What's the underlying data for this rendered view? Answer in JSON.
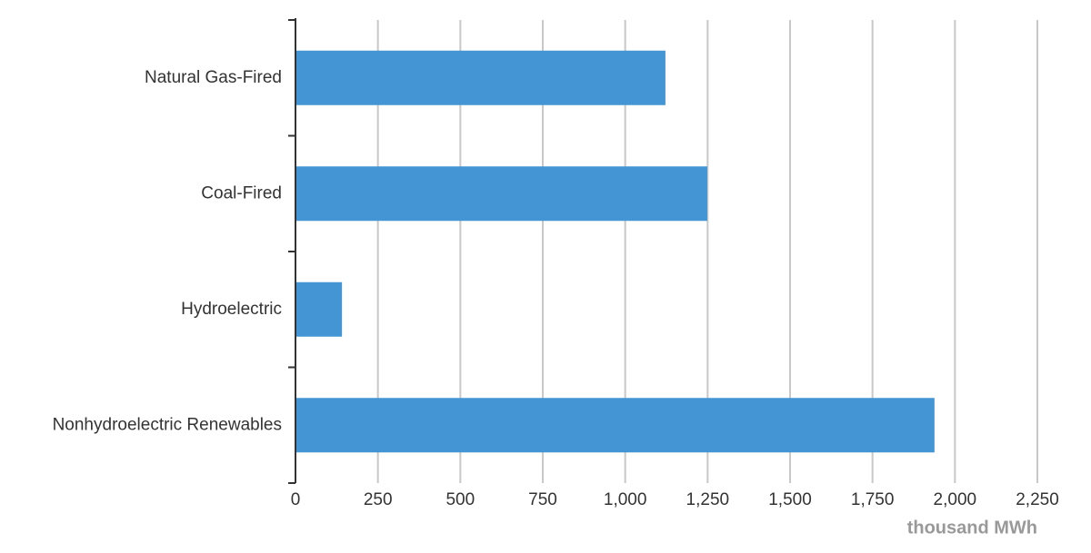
{
  "chart_data": {
    "type": "hbar",
    "categories": [
      "Natural Gas-Fired",
      "Coal-Fired",
      "Hydroelectric",
      "Nonhydroelectric Renewables"
    ],
    "values": [
      1122,
      1249,
      141,
      1938
    ],
    "color": "#4396d3",
    "x_label": "thousand MWh",
    "xlim": [
      0,
      2250
    ],
    "xticks": [
      0,
      250,
      500,
      750,
      {
        "value": 1000,
        "label": "1,000"
      },
      {
        "value": 1250,
        "label": "1,250"
      },
      {
        "value": 1500,
        "label": "1,500"
      },
      {
        "value": 1750,
        "label": "1,750"
      },
      {
        "value": 2000,
        "label": "2,000"
      },
      {
        "value": 2250,
        "label": "2,250"
      }
    ],
    "grid": true
  }
}
